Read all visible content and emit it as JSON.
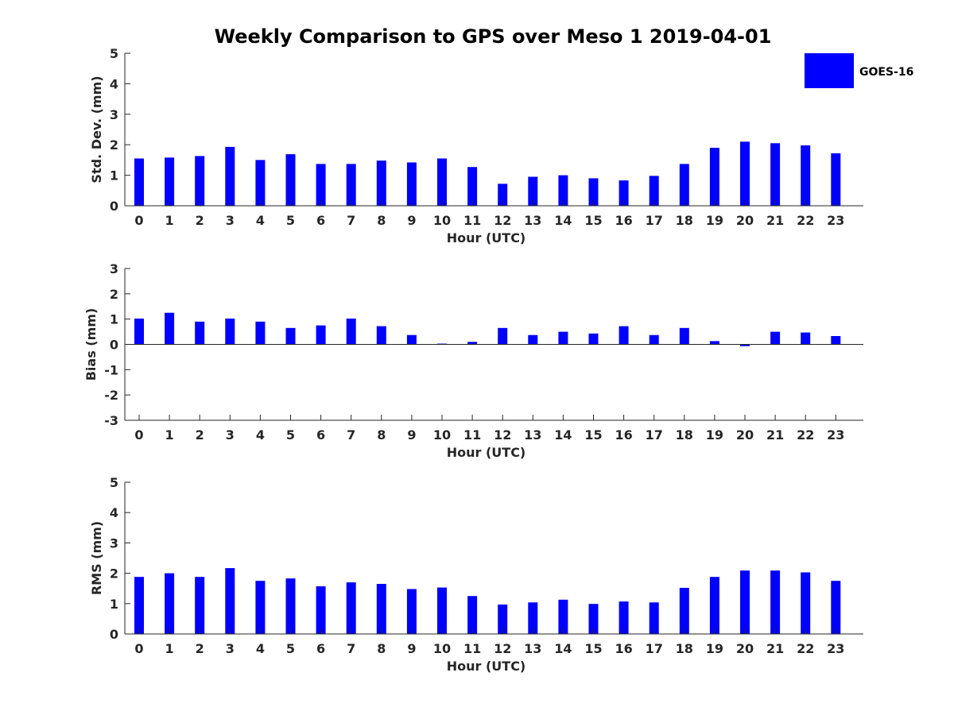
{
  "chart_data": [
    {
      "type": "bar",
      "title": "Weekly Comparison to GPS over Meso 1 2019-04-01",
      "xlabel": "Hour (UTC)",
      "ylabel": "Std. Dev. (mm)",
      "ylim": [
        0,
        5
      ],
      "yticks": [
        0,
        1,
        2,
        3,
        4,
        5
      ],
      "categories": [
        "0",
        "1",
        "2",
        "3",
        "4",
        "5",
        "6",
        "7",
        "8",
        "9",
        "10",
        "11",
        "12",
        "13",
        "14",
        "15",
        "16",
        "17",
        "18",
        "19",
        "20",
        "21",
        "22",
        "23"
      ],
      "series": [
        {
          "name": "GOES-16",
          "color": "#0000ff",
          "values": [
            1.55,
            1.58,
            1.63,
            1.93,
            1.5,
            1.69,
            1.37,
            1.37,
            1.48,
            1.42,
            1.55,
            1.27,
            0.72,
            0.95,
            1.0,
            0.9,
            0.83,
            0.98,
            1.37,
            1.9,
            2.1,
            2.05,
            1.98,
            1.72
          ]
        }
      ],
      "legend": {
        "entries": [
          "GOES-16"
        ],
        "placement": "top-right"
      }
    },
    {
      "type": "bar",
      "xlabel": "Hour (UTC)",
      "ylabel": "Bias (mm)",
      "ylim": [
        -3,
        3
      ],
      "yticks": [
        -3,
        -2,
        -1,
        0,
        1,
        2,
        3
      ],
      "categories": [
        "0",
        "1",
        "2",
        "3",
        "4",
        "5",
        "6",
        "7",
        "8",
        "9",
        "10",
        "11",
        "12",
        "13",
        "14",
        "15",
        "16",
        "17",
        "18",
        "19",
        "20",
        "21",
        "22",
        "23"
      ],
      "series": [
        {
          "name": "GOES-16",
          "color": "#0000ff",
          "values": [
            1.02,
            1.25,
            0.9,
            1.02,
            0.9,
            0.65,
            0.75,
            1.02,
            0.72,
            0.37,
            0.03,
            0.1,
            0.65,
            0.37,
            0.5,
            0.43,
            0.72,
            0.37,
            0.65,
            0.13,
            -0.07,
            0.5,
            0.47,
            0.33
          ]
        }
      ]
    },
    {
      "type": "bar",
      "xlabel": "Hour (UTC)",
      "ylabel": "RMS (mm)",
      "ylim": [
        0,
        5
      ],
      "yticks": [
        0,
        1,
        2,
        3,
        4,
        5
      ],
      "categories": [
        "0",
        "1",
        "2",
        "3",
        "4",
        "5",
        "6",
        "7",
        "8",
        "9",
        "10",
        "11",
        "12",
        "13",
        "14",
        "15",
        "16",
        "17",
        "18",
        "19",
        "20",
        "21",
        "22",
        "23"
      ],
      "series": [
        {
          "name": "GOES-16",
          "color": "#0000ff",
          "values": [
            1.88,
            2.0,
            1.88,
            2.17,
            1.75,
            1.83,
            1.57,
            1.7,
            1.65,
            1.48,
            1.53,
            1.25,
            0.97,
            1.04,
            1.13,
            0.99,
            1.07,
            1.04,
            1.52,
            1.88,
            2.09,
            2.09,
            2.03,
            1.75
          ]
        }
      ]
    }
  ]
}
